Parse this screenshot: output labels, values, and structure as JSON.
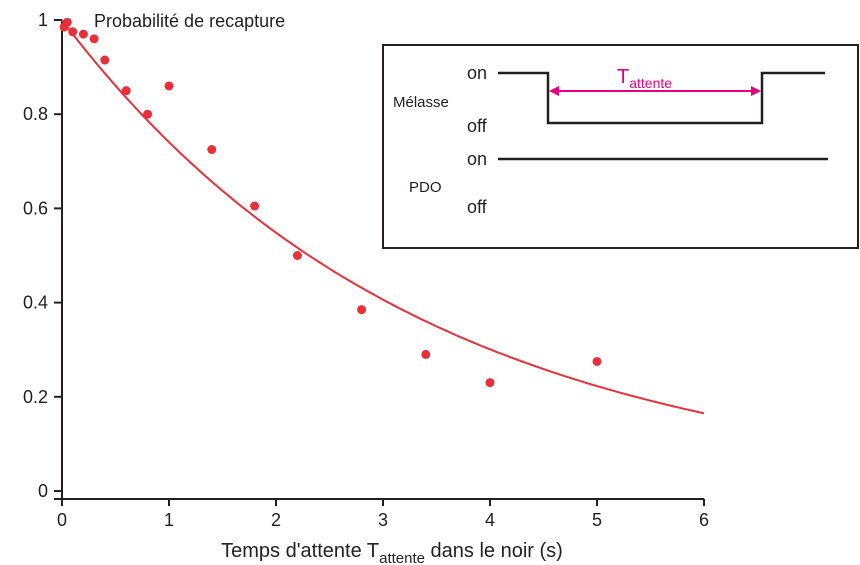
{
  "chart_data": {
    "type": "scatter",
    "title": "Probabilité de recapture",
    "xlabel": {
      "prefix": "Temps d'attente T",
      "subscript": "attente",
      "suffix": " dans le noir (s)"
    },
    "ylabel": "",
    "xlim": [
      0,
      6
    ],
    "ylim": [
      0,
      1
    ],
    "x_ticks": [
      0,
      1,
      2,
      3,
      4,
      5,
      6
    ],
    "y_ticks": [
      0,
      0.2,
      0.4,
      0.6,
      0.8,
      1
    ],
    "x_tick_labels": [
      "0",
      "1",
      "2",
      "3",
      "4",
      "5",
      "6"
    ],
    "y_tick_labels": [
      "0",
      "0.2",
      "0.4",
      "0.6",
      "0.8",
      "1"
    ],
    "grid": false,
    "colors": {
      "data": "#e8303a",
      "fit": "#e8303a",
      "axis": "#231f20",
      "annotation": "#e6007e"
    },
    "series": [
      {
        "kind": "points",
        "x": [
          0.02,
          0.05,
          0.1,
          0.2,
          0.3,
          0.4,
          0.6,
          0.8,
          1.0,
          1.4,
          1.8,
          2.2,
          2.8,
          3.4,
          4.0,
          5.0
        ],
        "y": [
          0.985,
          0.995,
          0.975,
          0.97,
          0.96,
          0.915,
          0.85,
          0.8,
          0.86,
          0.725,
          0.605,
          0.5,
          0.385,
          0.29,
          0.23,
          0.275
        ]
      },
      {
        "kind": "fit",
        "model": "exponential",
        "x_start": 0,
        "x_end": 6,
        "y_start": 1.0,
        "y_end": 0.165
      }
    ],
    "inset": {
      "rows": [
        {
          "name": "Mélasse",
          "on_label": "on",
          "off_label": "off",
          "states": [
            "on",
            "off",
            "on"
          ]
        },
        {
          "name": "PDO",
          "on_label": "on",
          "off_label": "off",
          "states": [
            "on"
          ]
        }
      ],
      "annotation": {
        "prefix": "T",
        "subscript": "attente"
      }
    }
  }
}
